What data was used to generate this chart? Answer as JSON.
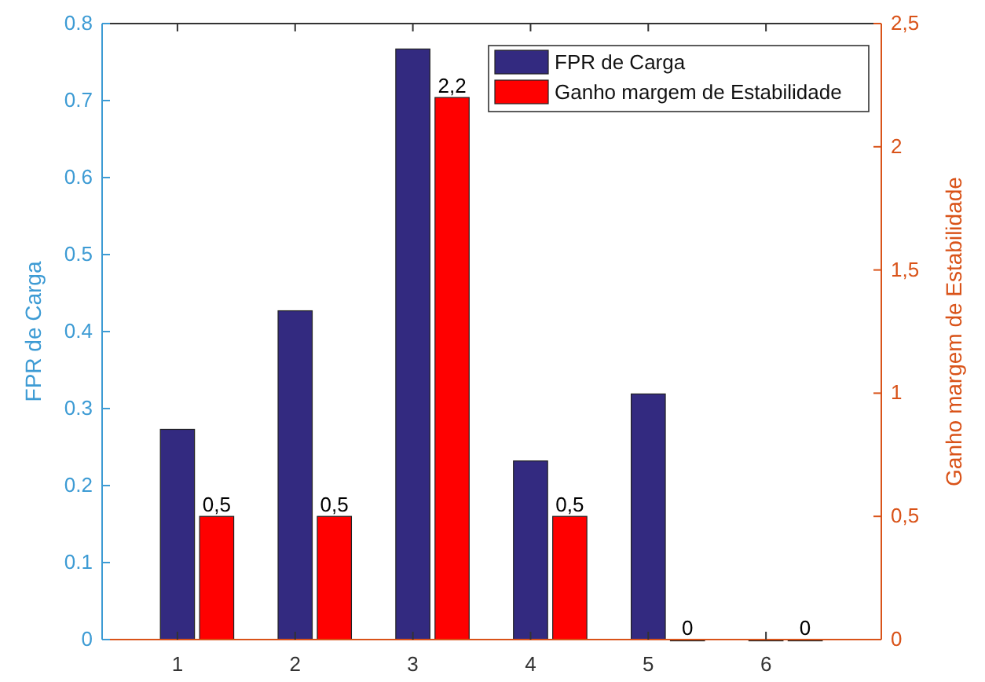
{
  "chart_data": {
    "type": "bar",
    "ylabel": "FPR de Carga",
    "y2label": "Ganho margem de Estabilidade",
    "categories": [
      "1",
      "2",
      "3",
      "4",
      "5",
      "6"
    ],
    "series": [
      {
        "name": "FPR de Carga",
        "color": "#332a80",
        "values": [
          0.273,
          0.427,
          0.767,
          0.232,
          0.319,
          0
        ]
      },
      {
        "name": "Ganho margem de Estabilidade",
        "color": "#ff0000",
        "axis": "y2",
        "values": [
          0.5,
          0.5,
          2.2,
          0.5,
          0,
          0
        ],
        "value_labels": [
          "0,5",
          "0,5",
          "2,2",
          "0,5",
          "0",
          "0"
        ]
      }
    ],
    "ylim": [
      0,
      0.8
    ],
    "yticks": [
      0,
      0.1,
      0.2,
      0.3,
      0.4,
      0.5,
      0.6,
      0.7,
      0.8
    ],
    "y2lim": [
      0,
      2.5
    ],
    "y2ticks": [
      0,
      {
        "value": 0.5,
        "label": "0,5"
      },
      1,
      {
        "value": 1.5,
        "label": "1,5"
      },
      2,
      {
        "value": 2.5,
        "label": "2,5"
      }
    ],
    "legend": "top right",
    "grid": false
  }
}
